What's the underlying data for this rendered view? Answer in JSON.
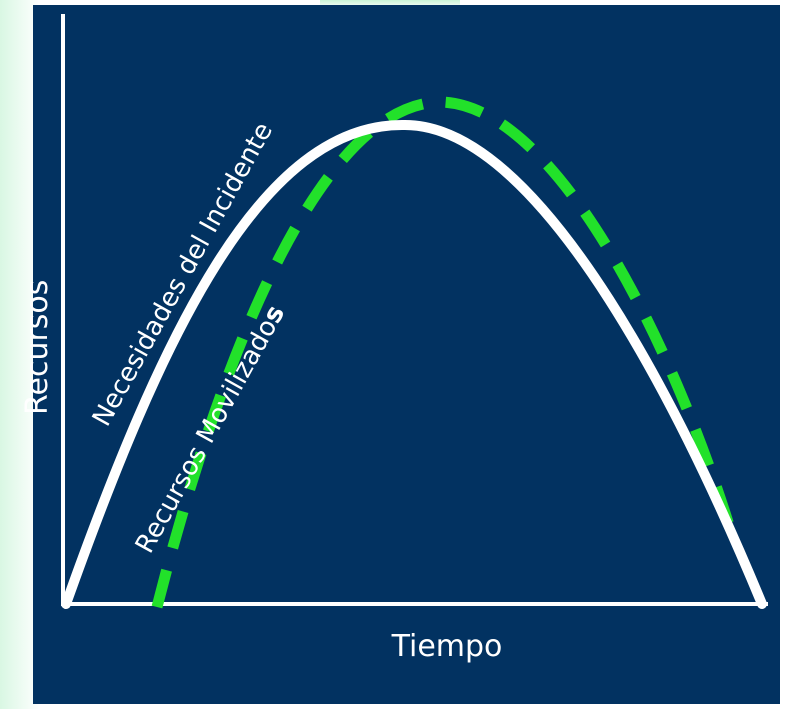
{
  "diagram": {
    "axis_y_label": "Recursos",
    "axis_x_label": "Tiempo",
    "needs_curve_label": "Necesidades del Incidente",
    "mobilized_curve_label": "Recursos Movilizados",
    "mobilized_curve_label_base": "Recursos Movilizado",
    "mobilized_curve_label_last": "s"
  },
  "colors": {
    "background": "#023261",
    "needs_curve": "#ffffff",
    "mobilized_curve": "#22e12a",
    "axes": "#ffffff"
  }
}
